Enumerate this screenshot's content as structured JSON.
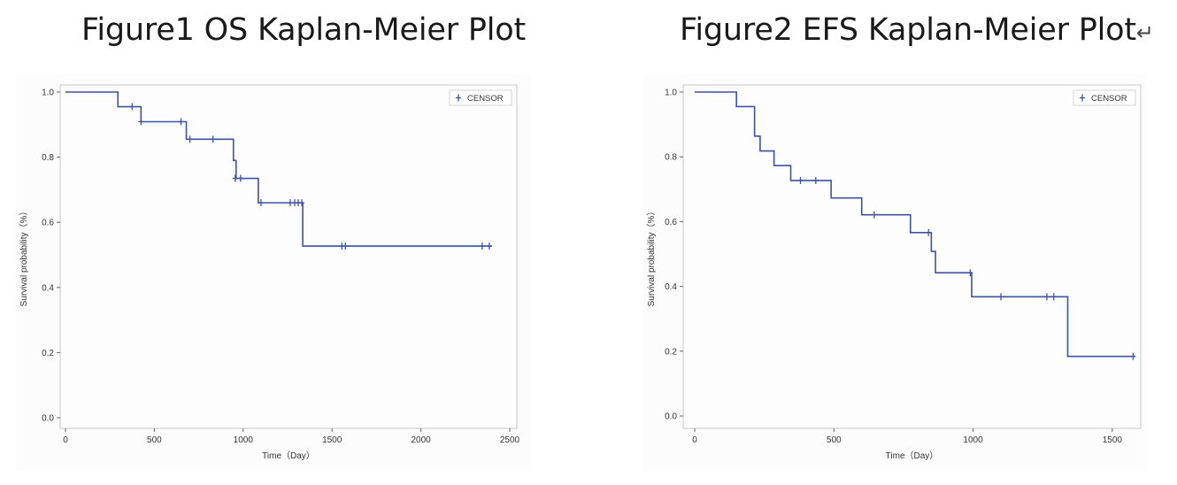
{
  "figure1": {
    "title": "Figure1 OS Kaplan-Meier Plot"
  },
  "figure2": {
    "title": "Figure2 EFS Kaplan-Meier Plot",
    "title_suffix": "↵"
  },
  "colors": {
    "curve": "#3f52a3",
    "frame": "#c8c8c8",
    "panel_bg": "#fcfcfd"
  },
  "chart_data": [
    {
      "type": "line",
      "step": "post",
      "xlabel": "Time（Day）",
      "ylabel": "Survival probability（%）",
      "xlim": [
        0,
        2500
      ],
      "ylim": [
        0,
        1.0
      ],
      "xticks": [
        0,
        500,
        1000,
        1500,
        2000,
        2500
      ],
      "yticks": [
        "0.0",
        "0.2",
        "0.4",
        "0.6",
        "0.8",
        "1.0"
      ],
      "legend": {
        "label": "CENSOR",
        "position": "top-right"
      },
      "series": [
        {
          "x": [
            0,
            295,
            425,
            680,
            945,
            960,
            1085,
            1335,
            2400
          ],
          "y": [
            1.0,
            0.955,
            0.909,
            0.855,
            0.79,
            0.735,
            0.66,
            0.527,
            0.527
          ]
        }
      ],
      "censored": [
        {
          "x": 375,
          "y": 0.955
        },
        {
          "x": 425,
          "y": 0.909
        },
        {
          "x": 650,
          "y": 0.909
        },
        {
          "x": 700,
          "y": 0.855
        },
        {
          "x": 830,
          "y": 0.855
        },
        {
          "x": 955,
          "y": 0.735
        },
        {
          "x": 985,
          "y": 0.735
        },
        {
          "x": 1100,
          "y": 0.66
        },
        {
          "x": 1265,
          "y": 0.66
        },
        {
          "x": 1290,
          "y": 0.66
        },
        {
          "x": 1310,
          "y": 0.66
        },
        {
          "x": 1330,
          "y": 0.66
        },
        {
          "x": 1555,
          "y": 0.527
        },
        {
          "x": 1575,
          "y": 0.527
        },
        {
          "x": 2345,
          "y": 0.527
        },
        {
          "x": 2385,
          "y": 0.527
        }
      ]
    },
    {
      "type": "line",
      "step": "post",
      "xlabel": "Time（Day）",
      "ylabel": "Survival probability（%）",
      "xlim": [
        0,
        1580
      ],
      "ylim": [
        0,
        1.0
      ],
      "xticks": [
        0,
        500,
        1000,
        1500
      ],
      "yticks": [
        "0.0",
        "0.2",
        "0.4",
        "0.6",
        "0.8",
        "1.0"
      ],
      "legend": {
        "label": "CENSOR",
        "position": "top-right"
      },
      "series": [
        {
          "x": [
            0,
            150,
            215,
            235,
            285,
            345,
            490,
            600,
            775,
            850,
            865,
            995,
            1340,
            1580
          ],
          "y": [
            1.0,
            0.955,
            0.864,
            0.818,
            0.773,
            0.727,
            0.673,
            0.621,
            0.566,
            0.508,
            0.442,
            0.368,
            0.184,
            0.184
          ]
        }
      ],
      "censored": [
        {
          "x": 380,
          "y": 0.727
        },
        {
          "x": 435,
          "y": 0.727
        },
        {
          "x": 645,
          "y": 0.621
        },
        {
          "x": 840,
          "y": 0.566
        },
        {
          "x": 990,
          "y": 0.442
        },
        {
          "x": 1100,
          "y": 0.368
        },
        {
          "x": 1265,
          "y": 0.368
        },
        {
          "x": 1290,
          "y": 0.368
        },
        {
          "x": 1575,
          "y": 0.184
        }
      ]
    }
  ]
}
